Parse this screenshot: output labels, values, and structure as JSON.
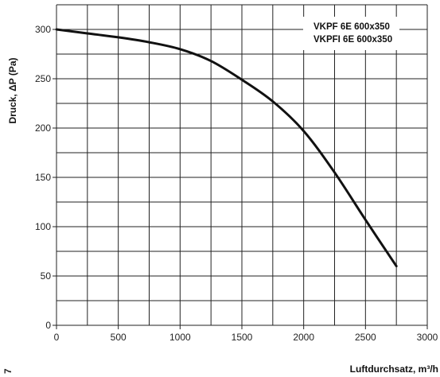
{
  "chart_data": {
    "type": "line",
    "xlabel": "Luftdurchsatz, m³/h",
    "ylabel": "Druck, ΔP (Pa)",
    "xlim": [
      0,
      3000
    ],
    "ylim": [
      0,
      325
    ],
    "x_ticks": [
      0,
      500,
      1000,
      1500,
      2000,
      2500,
      3000
    ],
    "y_ticks": [
      0,
      50,
      100,
      150,
      200,
      250,
      300
    ],
    "x_grid": [
      0,
      250,
      500,
      750,
      1000,
      1250,
      1500,
      1750,
      2000,
      2250,
      2500,
      2750,
      3000
    ],
    "y_grid": [
      0,
      25,
      50,
      75,
      100,
      125,
      150,
      175,
      200,
      225,
      250,
      275,
      300,
      325
    ],
    "grid": true,
    "legend": {
      "placement": "top-right",
      "entries": [
        "VKPF 6E 600x350",
        "VKPFI 6E 600x350"
      ]
    },
    "series": [
      {
        "x": [
          0,
          250,
          500,
          750,
          1000,
          1250,
          1500,
          1750,
          2000,
          2250,
          2500,
          2750
        ],
        "y": [
          300,
          296,
          292,
          287,
          280,
          268,
          249,
          227,
          197,
          155,
          107,
          60
        ]
      }
    ],
    "colors": {
      "line": "#111111",
      "grid": "#222222",
      "background": "#ffffff"
    }
  },
  "corner_glyph": "7"
}
